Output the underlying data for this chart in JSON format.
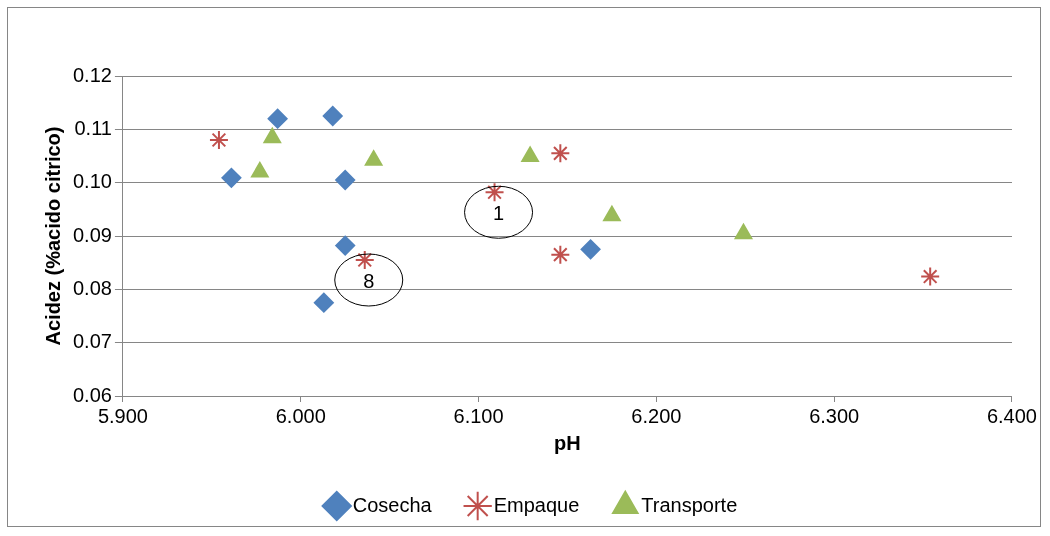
{
  "chart_data": {
    "type": "scatter",
    "xlabel": "pH",
    "ylabel": "Acidez (%acido citrico)",
    "xlim": [
      5.9,
      6.4
    ],
    "xticks": [
      {
        "value": 5.9,
        "label": "5.900"
      },
      {
        "value": 6.0,
        "label": "6.000"
      },
      {
        "value": 6.1,
        "label": "6.100"
      },
      {
        "value": 6.2,
        "label": "6.200"
      },
      {
        "value": 6.3,
        "label": "6.300"
      },
      {
        "value": 6.4,
        "label": "6.400"
      }
    ],
    "ylim": [
      0.06,
      0.12
    ],
    "yticks": [
      {
        "value": 0.06,
        "label": "0.06"
      },
      {
        "value": 0.07,
        "label": "0.07"
      },
      {
        "value": 0.08,
        "label": "0.08"
      },
      {
        "value": 0.09,
        "label": "0.09"
      },
      {
        "value": 0.1,
        "label": "0.10"
      },
      {
        "value": 0.11,
        "label": "0.11"
      },
      {
        "value": 0.12,
        "label": "0.12"
      }
    ],
    "grid": "y",
    "legend": "bottom",
    "series": [
      {
        "name": "Cosecha",
        "color": "#4f81bd",
        "marker": "diamond",
        "x": [
          5.961,
          5.987,
          6.018,
          6.025,
          6.025,
          6.013,
          6.163
        ],
        "values": [
          0.1009,
          0.112,
          0.1125,
          0.1005,
          0.0882,
          0.0775,
          0.0875
        ]
      },
      {
        "name": "Empaque",
        "color": "#c0504d",
        "marker": "cross",
        "x": [
          5.954,
          6.146,
          6.109,
          6.036,
          6.146,
          6.354
        ],
        "values": [
          0.108,
          0.1055,
          0.0982,
          0.0855,
          0.0865,
          0.0824
        ]
      },
      {
        "name": "Transporte",
        "color": "#9bbb59",
        "marker": "triangle",
        "x": [
          5.977,
          5.984,
          6.041,
          6.129,
          6.175,
          6.249
        ],
        "values": [
          0.102,
          0.1084,
          0.1042,
          0.1049,
          0.0938,
          0.0904
        ]
      }
    ],
    "annotations": [
      {
        "text": "1",
        "x": 6.109,
        "y": 0.0982
      },
      {
        "text": "8",
        "x": 6.036,
        "y": 0.0855
      }
    ]
  }
}
